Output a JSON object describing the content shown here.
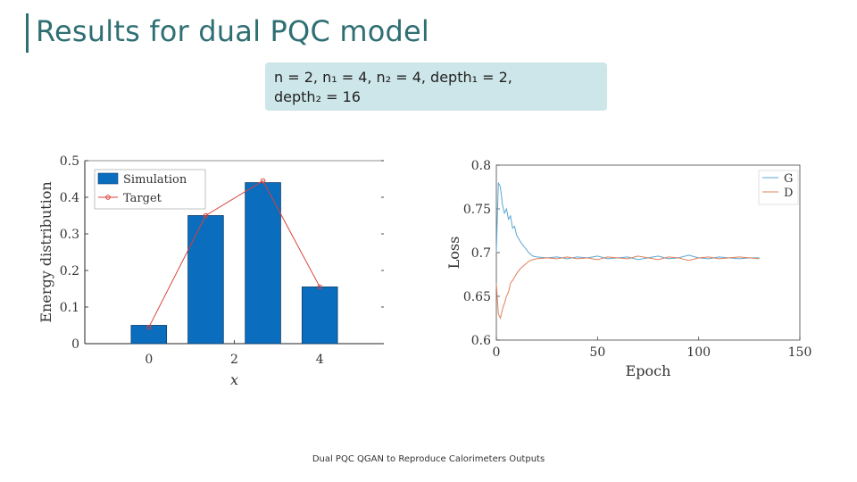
{
  "slide": {
    "title": "Results for dual PQC model",
    "params_line1": "n = 2, n₁ = 4, n₂ = 4, depth₁ = 2,",
    "params_line2": "depth₂ = 16",
    "footer": "Dual PQC QGAN to Reproduce Calorimeters Outputs"
  },
  "colors": {
    "title": "#2f6f73",
    "params_box": "#cde6ea",
    "bar": "#0a6dbd",
    "target": "#d9413a",
    "g_line": "#5aa7d3",
    "d_line": "#e0805a"
  },
  "chart_data": [
    {
      "type": "bar",
      "xlabel": "x",
      "ylabel": "Energy distribution",
      "ylim": [
        0,
        0.5
      ],
      "xlim": [
        -1.5,
        5.5
      ],
      "xticks": [
        "0",
        "2",
        "4"
      ],
      "yticks": [
        "0",
        "0.1",
        "0.2",
        "0.3",
        "0.4",
        "0.5"
      ],
      "legend_position": "top-left",
      "x": [
        0,
        1.33,
        2.67,
        4
      ],
      "series": [
        {
          "name": "Simulation",
          "kind": "bar",
          "values": [
            0.05,
            0.35,
            0.44,
            0.155
          ]
        },
        {
          "name": "Target",
          "kind": "line-marker",
          "values": [
            0.045,
            0.35,
            0.445,
            0.155
          ]
        }
      ]
    },
    {
      "type": "line",
      "xlabel": "Epoch",
      "ylabel": "Loss",
      "xlim": [
        0,
        150
      ],
      "ylim": [
        0.6,
        0.8
      ],
      "xticks": [
        "0",
        "50",
        "100",
        "150"
      ],
      "yticks": [
        "0.6",
        "0.65",
        "0.7",
        "0.75",
        "0.8"
      ],
      "legend_position": "top-right",
      "series": [
        {
          "name": "G",
          "x": [
            0,
            1,
            2,
            3,
            4,
            5,
            6,
            7,
            8,
            9,
            10,
            12,
            14,
            16,
            18,
            20,
            25,
            30,
            35,
            40,
            45,
            50,
            55,
            60,
            65,
            70,
            75,
            80,
            85,
            90,
            95,
            100,
            105,
            110,
            115,
            120,
            125,
            130
          ],
          "values": [
            0.7,
            0.78,
            0.775,
            0.755,
            0.745,
            0.75,
            0.738,
            0.742,
            0.728,
            0.73,
            0.72,
            0.712,
            0.706,
            0.7,
            0.696,
            0.695,
            0.694,
            0.695,
            0.693,
            0.695,
            0.694,
            0.696,
            0.693,
            0.694,
            0.695,
            0.692,
            0.694,
            0.696,
            0.693,
            0.694,
            0.697,
            0.694,
            0.693,
            0.695,
            0.694,
            0.693,
            0.694,
            0.694
          ]
        },
        {
          "name": "D",
          "x": [
            0,
            1,
            2,
            3,
            4,
            5,
            6,
            7,
            8,
            9,
            10,
            12,
            14,
            16,
            18,
            20,
            25,
            30,
            35,
            40,
            45,
            50,
            55,
            60,
            65,
            70,
            75,
            80,
            85,
            90,
            95,
            100,
            105,
            110,
            115,
            120,
            125,
            130
          ],
          "values": [
            0.665,
            0.63,
            0.625,
            0.635,
            0.642,
            0.65,
            0.655,
            0.665,
            0.668,
            0.672,
            0.676,
            0.682,
            0.686,
            0.69,
            0.692,
            0.693,
            0.694,
            0.693,
            0.695,
            0.693,
            0.694,
            0.692,
            0.695,
            0.694,
            0.693,
            0.696,
            0.694,
            0.692,
            0.695,
            0.694,
            0.691,
            0.694,
            0.695,
            0.693,
            0.694,
            0.695,
            0.694,
            0.693
          ]
        }
      ]
    }
  ]
}
